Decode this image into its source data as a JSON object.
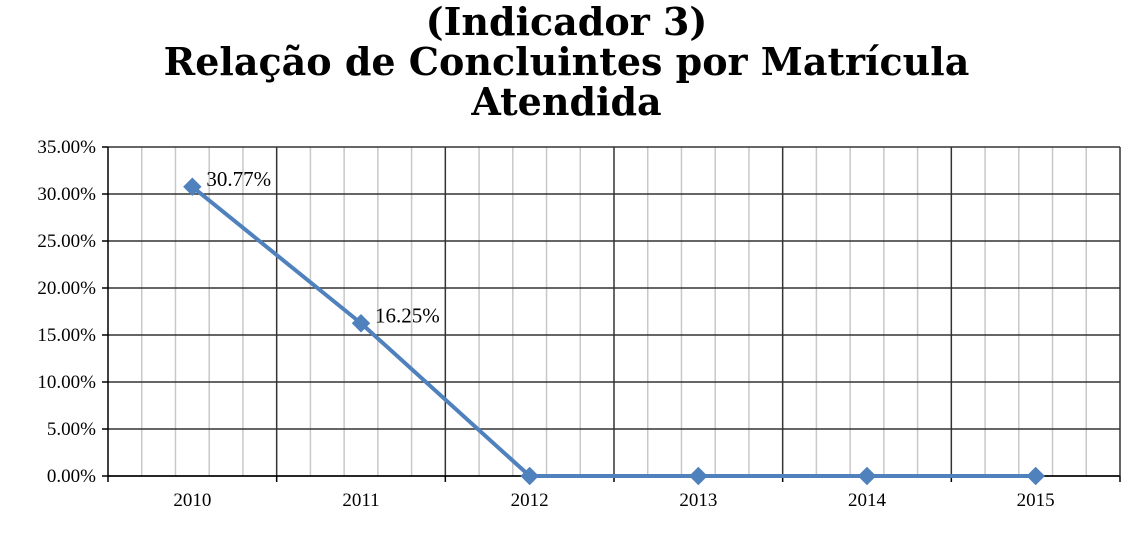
{
  "chart_data": {
    "type": "line",
    "title_lines": [
      "(Indicador 3)",
      "Relação de Concluintes por Matrícula",
      "Atendida"
    ],
    "xlabel": "",
    "ylabel": "",
    "categories": [
      "2010",
      "2011",
      "2012",
      "2013",
      "2014",
      "2015"
    ],
    "series": [
      {
        "values": [
          30.77,
          16.25,
          0,
          0,
          0,
          0
        ],
        "color": "#4F81BD"
      }
    ],
    "data_labels": [
      "30.77%",
      "16.25%",
      "",
      "",
      "",
      ""
    ],
    "y_ticks": [
      "0.00%",
      "5.00%",
      "10.00%",
      "15.00%",
      "20.00%",
      "25.00%",
      "30.00%",
      "35.00%"
    ],
    "ylim": [
      0,
      35
    ],
    "grid": true,
    "legend": "none"
  }
}
